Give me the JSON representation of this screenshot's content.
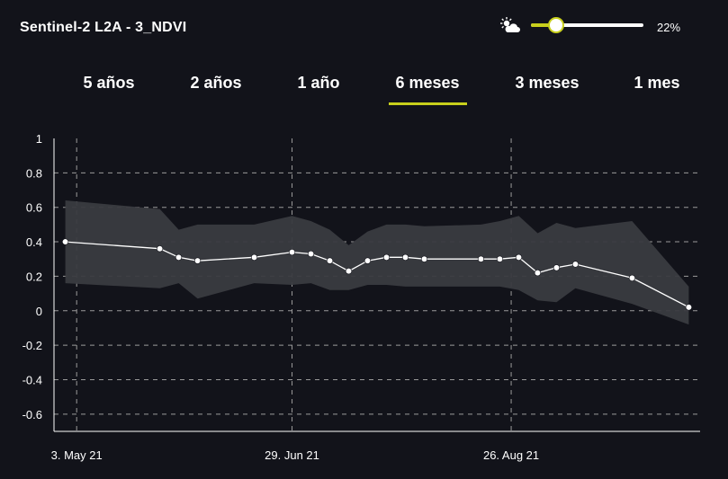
{
  "header": {
    "title": "Sentinel-2 L2A - 3_NDVI",
    "cloud_icon": "cloud-sun-icon",
    "cloud_coverage": {
      "value": 22,
      "label": "22%"
    }
  },
  "tabs": [
    {
      "label": "5 años",
      "active": false
    },
    {
      "label": "2 años",
      "active": false
    },
    {
      "label": "1 año",
      "active": false
    },
    {
      "label": "6 meses",
      "active": true
    },
    {
      "label": "3 meses",
      "active": false
    },
    {
      "label": "1 mes",
      "active": false
    }
  ],
  "colors": {
    "accent": "#c8cf1c",
    "background": "#12131a",
    "band": "#3a3b40",
    "line": "#ffffff",
    "grid": "#9a9a9a"
  },
  "chart_data": {
    "type": "line",
    "title": "",
    "xlabel": "",
    "ylabel": "",
    "ylim": [
      -0.7,
      1
    ],
    "yticks": [
      1,
      0.8,
      0.6,
      0.4,
      0.2,
      0,
      -0.2,
      -0.4,
      -0.6
    ],
    "yticklabels": [
      "1",
      "0.8",
      "0.6",
      "0.4",
      "0.2",
      "0",
      "-0.2",
      "-0.4",
      "-0.6"
    ],
    "xlim": [
      "2021-04-27",
      "2021-10-15"
    ],
    "xticks": [
      "2021-05-03",
      "2021-06-29",
      "2021-08-26"
    ],
    "xticklabels": [
      "3. May 21",
      "29. Jun 21",
      "26. Aug 21"
    ],
    "grid": true,
    "series": [
      {
        "type": "line",
        "points": [
          [
            "2021-04-30",
            0.4
          ],
          [
            "2021-05-25",
            0.36
          ],
          [
            "2021-05-30",
            0.31
          ],
          [
            "2021-06-04",
            0.29
          ],
          [
            "2021-06-19",
            0.31
          ],
          [
            "2021-06-29",
            0.34
          ],
          [
            "2021-07-04",
            0.33
          ],
          [
            "2021-07-09",
            0.29
          ],
          [
            "2021-07-14",
            0.23
          ],
          [
            "2021-07-19",
            0.29
          ],
          [
            "2021-07-24",
            0.31
          ],
          [
            "2021-07-29",
            0.31
          ],
          [
            "2021-08-03",
            0.3
          ],
          [
            "2021-08-18",
            0.3
          ],
          [
            "2021-08-23",
            0.3
          ],
          [
            "2021-08-28",
            0.31
          ],
          [
            "2021-09-02",
            0.22
          ],
          [
            "2021-09-07",
            0.25
          ],
          [
            "2021-09-12",
            0.27
          ],
          [
            "2021-09-27",
            0.19
          ],
          [
            "2021-10-12",
            0.02
          ]
        ]
      },
      {
        "type": "area",
        "upper": [
          [
            "2021-04-30",
            0.64
          ],
          [
            "2021-05-25",
            0.59
          ],
          [
            "2021-05-30",
            0.47
          ],
          [
            "2021-06-04",
            0.5
          ],
          [
            "2021-06-19",
            0.5
          ],
          [
            "2021-06-29",
            0.55
          ],
          [
            "2021-07-04",
            0.52
          ],
          [
            "2021-07-09",
            0.47
          ],
          [
            "2021-07-14",
            0.38
          ],
          [
            "2021-07-19",
            0.46
          ],
          [
            "2021-07-24",
            0.5
          ],
          [
            "2021-07-29",
            0.5
          ],
          [
            "2021-08-03",
            0.49
          ],
          [
            "2021-08-18",
            0.5
          ],
          [
            "2021-08-23",
            0.52
          ],
          [
            "2021-08-28",
            0.55
          ],
          [
            "2021-09-02",
            0.45
          ],
          [
            "2021-09-07",
            0.51
          ],
          [
            "2021-09-12",
            0.48
          ],
          [
            "2021-09-27",
            0.52
          ],
          [
            "2021-10-12",
            0.14
          ]
        ],
        "lower": [
          [
            "2021-04-30",
            0.16
          ],
          [
            "2021-05-25",
            0.13
          ],
          [
            "2021-05-30",
            0.16
          ],
          [
            "2021-06-04",
            0.07
          ],
          [
            "2021-06-19",
            0.16
          ],
          [
            "2021-06-29",
            0.15
          ],
          [
            "2021-07-04",
            0.16
          ],
          [
            "2021-07-09",
            0.12
          ],
          [
            "2021-07-14",
            0.12
          ],
          [
            "2021-07-19",
            0.15
          ],
          [
            "2021-07-24",
            0.15
          ],
          [
            "2021-07-29",
            0.14
          ],
          [
            "2021-08-03",
            0.14
          ],
          [
            "2021-08-18",
            0.14
          ],
          [
            "2021-08-23",
            0.14
          ],
          [
            "2021-08-28",
            0.12
          ],
          [
            "2021-09-02",
            0.06
          ],
          [
            "2021-09-07",
            0.05
          ],
          [
            "2021-09-12",
            0.13
          ],
          [
            "2021-09-27",
            0.04
          ],
          [
            "2021-10-12",
            -0.08
          ]
        ]
      }
    ]
  }
}
